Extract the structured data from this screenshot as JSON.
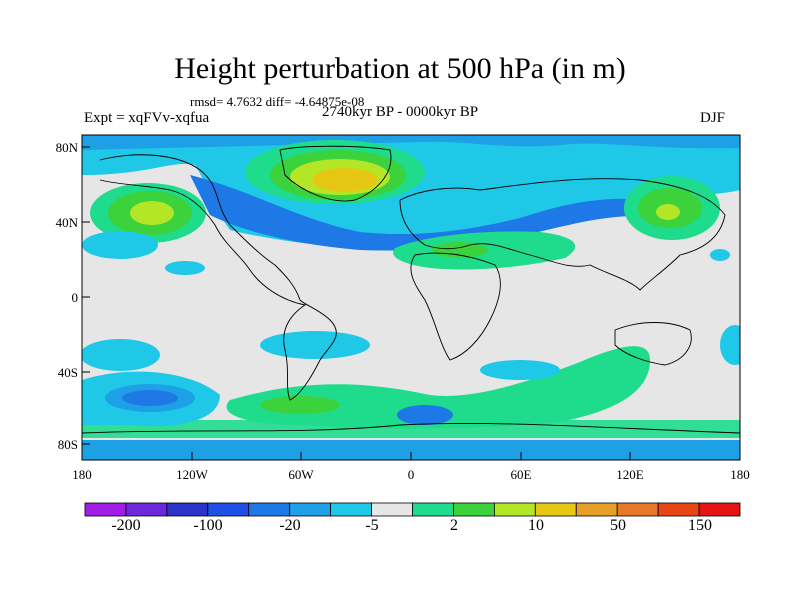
{
  "title": "Height perturbation at 500 hPa (in m)",
  "stats": "rmsd= 4.7632 diff= -4.64875e-08",
  "experiment": "Expt = xqFVv-xqfua",
  "period": "2740kyr BP - 0000kyr BP",
  "season": "DJF",
  "lat_labels": [
    "80N",
    "40N",
    "0",
    "40S",
    "80S"
  ],
  "lon_labels": [
    "180",
    "120W",
    "60W",
    "0",
    "60E",
    "120E",
    "180"
  ],
  "colorbar": {
    "colors": [
      "#a01ee6",
      "#6e28dc",
      "#2d32c8",
      "#1e50e6",
      "#1e78e6",
      "#1ea0e6",
      "#1ec8e6",
      "#e6e6e6",
      "#1edc8c",
      "#3cd23c",
      "#b4e628",
      "#e6c814",
      "#e6a028",
      "#e67828",
      "#e64614",
      "#e61414"
    ],
    "labels": [
      "-200",
      "-100",
      "-20",
      "-5",
      "2",
      "10",
      "50",
      "150"
    ]
  },
  "fill_colors": {
    "background": "#e6e6e6",
    "coast": "#000000"
  }
}
